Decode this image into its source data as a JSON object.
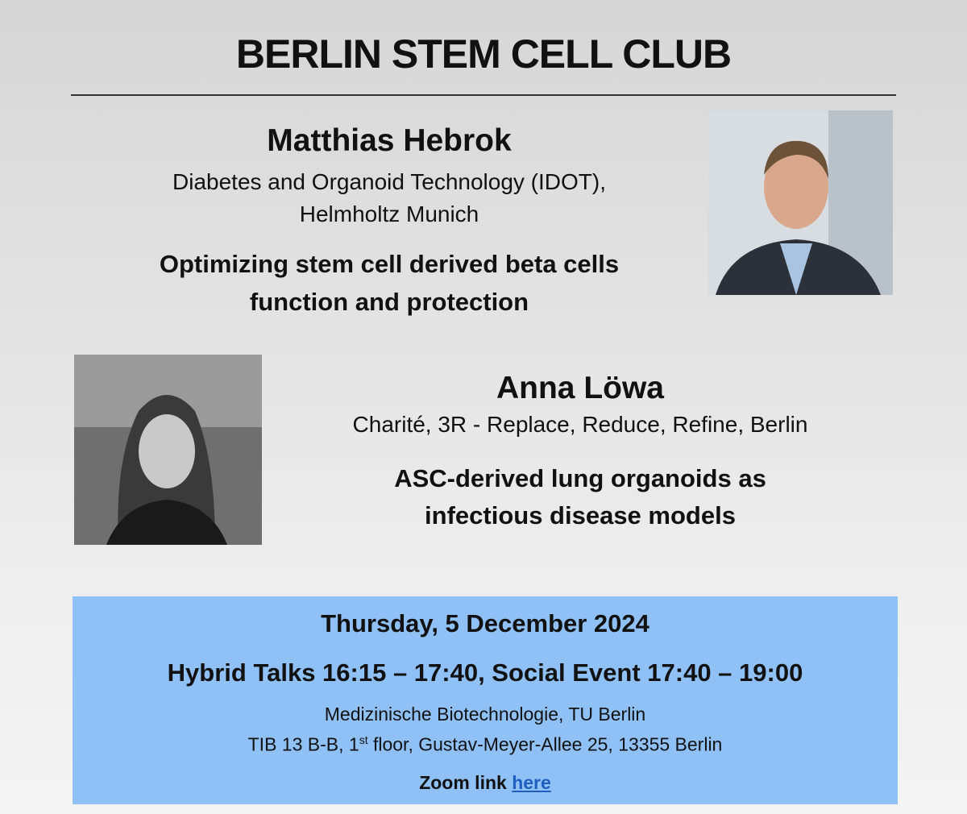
{
  "title": "BERLIN STEM CELL CLUB",
  "speakers": [
    {
      "name": "Matthias Hebrok",
      "affiliation": [
        "Diabetes and Organoid Technology (IDOT),",
        "Helmholtz Munich"
      ],
      "talk": [
        "Optimizing stem cell derived beta cells",
        "function and protection"
      ]
    },
    {
      "name": "Anna Löwa",
      "affiliation": [
        "Charité, 3R - Replace, Reduce, Refine, Berlin"
      ],
      "talk": [
        "ASC-derived lung organoids as",
        "infectious disease models"
      ]
    }
  ],
  "event": {
    "date": "Thursday, 5 December 2024",
    "schedule": "Hybrid Talks 16:15 – 17:40, Social Event 17:40 – 19:00",
    "location": [
      "Medizinische Biotechnologie, TU Berlin",
      [
        "TIB 13 B-B, 1",
        "st",
        " floor, Gustav-Meyer-Allee 25, 13355 Berlin"
      ]
    ],
    "zoom": {
      "label": "Zoom link",
      "link": "here"
    }
  }
}
